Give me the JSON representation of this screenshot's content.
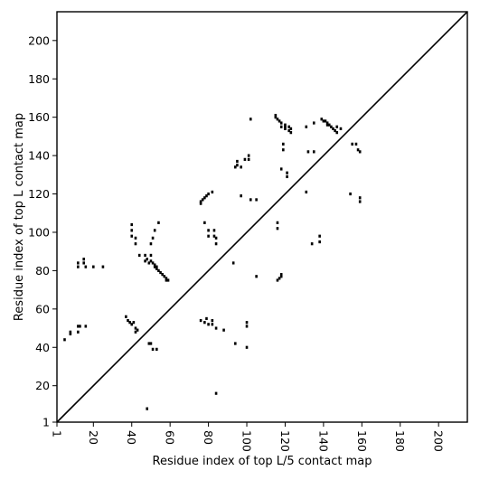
{
  "chart_data": {
    "type": "scatter",
    "xlabel": "Residue index of top L/5 contact map",
    "ylabel": "Residue index of top L contact map",
    "xlim": [
      1,
      215
    ],
    "ylim": [
      1,
      215
    ],
    "xticks": [
      1,
      20,
      40,
      60,
      80,
      100,
      120,
      140,
      160,
      180,
      200
    ],
    "yticks": [
      1,
      20,
      40,
      60,
      80,
      100,
      120,
      140,
      160,
      180,
      200
    ],
    "xtick_rotation": -90,
    "grid": false,
    "reference_line": {
      "from": [
        1,
        1
      ],
      "to": [
        215,
        215
      ]
    },
    "colors": {
      "marker": "#000000",
      "line": "#000000",
      "frame": "#000000"
    },
    "upper_triangle": [
      [
        12,
        84
      ],
      [
        12,
        82
      ],
      [
        15,
        86
      ],
      [
        15,
        84
      ],
      [
        16,
        82
      ],
      [
        20,
        82
      ],
      [
        25,
        82
      ],
      [
        40,
        104
      ],
      [
        40,
        101
      ],
      [
        40,
        98
      ],
      [
        42,
        97
      ],
      [
        42,
        94
      ],
      [
        44,
        88
      ],
      [
        47,
        88
      ],
      [
        47,
        85
      ],
      [
        48,
        86
      ],
      [
        49,
        84
      ],
      [
        50,
        88
      ],
      [
        50,
        85
      ],
      [
        50,
        94
      ],
      [
        51,
        97
      ],
      [
        51,
        84
      ],
      [
        52,
        83
      ],
      [
        52,
        82
      ],
      [
        52,
        101
      ],
      [
        53,
        82
      ],
      [
        53,
        81
      ],
      [
        54,
        80
      ],
      [
        54,
        105
      ],
      [
        55,
        79
      ],
      [
        56,
        78
      ],
      [
        57,
        77
      ],
      [
        58,
        76
      ],
      [
        58,
        75
      ],
      [
        59,
        75
      ],
      [
        76,
        115
      ],
      [
        76,
        116
      ],
      [
        77,
        117
      ],
      [
        78,
        118
      ],
      [
        78,
        105
      ],
      [
        79,
        119
      ],
      [
        80,
        120
      ],
      [
        80,
        101
      ],
      [
        80,
        98
      ],
      [
        82,
        121
      ],
      [
        83,
        101
      ],
      [
        83,
        98
      ],
      [
        84,
        97
      ],
      [
        84,
        94
      ],
      [
        94,
        134
      ],
      [
        95,
        135
      ],
      [
        95,
        137
      ],
      [
        97,
        119
      ],
      [
        97,
        134
      ],
      [
        99,
        138
      ],
      [
        101,
        138
      ],
      [
        101,
        140
      ],
      [
        102,
        159
      ],
      [
        115,
        161
      ],
      [
        115,
        160
      ],
      [
        116,
        159
      ],
      [
        117,
        158
      ],
      [
        118,
        157
      ],
      [
        118,
        155
      ],
      [
        118,
        133
      ],
      [
        119,
        146
      ],
      [
        119,
        143
      ],
      [
        120,
        156
      ],
      [
        120,
        155
      ],
      [
        120,
        154
      ],
      [
        121,
        131
      ],
      [
        121,
        129
      ],
      [
        122,
        155
      ],
      [
        122,
        153
      ],
      [
        123,
        154
      ],
      [
        123,
        152
      ],
      [
        131,
        155
      ],
      [
        132,
        142
      ],
      [
        135,
        157
      ],
      [
        135,
        142
      ],
      [
        139,
        159
      ],
      [
        140,
        158
      ],
      [
        141,
        158
      ],
      [
        142,
        157
      ],
      [
        142,
        156
      ],
      [
        143,
        156
      ],
      [
        144,
        155
      ],
      [
        145,
        154
      ],
      [
        146,
        153
      ],
      [
        147,
        155
      ],
      [
        147,
        152
      ],
      [
        149,
        154
      ],
      [
        155,
        146
      ],
      [
        157,
        146
      ],
      [
        158,
        143
      ],
      [
        159,
        142
      ]
    ],
    "lower_triangle": [
      [
        5,
        44
      ],
      [
        8,
        47
      ],
      [
        8,
        48
      ],
      [
        12,
        48
      ],
      [
        12,
        51
      ],
      [
        13,
        51
      ],
      [
        16,
        51
      ],
      [
        37,
        56
      ],
      [
        38,
        54
      ],
      [
        39,
        53
      ],
      [
        40,
        52
      ],
      [
        41,
        53
      ],
      [
        42,
        50
      ],
      [
        42,
        48
      ],
      [
        43,
        49
      ],
      [
        48,
        8
      ],
      [
        49,
        42
      ],
      [
        50,
        42
      ],
      [
        51,
        39
      ],
      [
        53,
        39
      ],
      [
        76,
        54
      ],
      [
        78,
        53
      ],
      [
        79,
        55
      ],
      [
        80,
        52
      ],
      [
        82,
        54
      ],
      [
        82,
        52
      ],
      [
        84,
        50
      ],
      [
        84,
        16
      ],
      [
        88,
        49
      ],
      [
        93,
        84
      ],
      [
        94,
        42
      ],
      [
        100,
        53
      ],
      [
        100,
        51
      ],
      [
        100,
        40
      ],
      [
        102,
        117
      ],
      [
        105,
        117
      ],
      [
        105,
        77
      ],
      [
        116,
        102
      ],
      [
        116,
        105
      ],
      [
        116,
        75
      ],
      [
        117,
        76
      ],
      [
        118,
        77
      ],
      [
        118,
        78
      ],
      [
        131,
        121
      ],
      [
        134,
        94
      ],
      [
        138,
        98
      ],
      [
        138,
        95
      ],
      [
        154,
        120
      ],
      [
        159,
        118
      ],
      [
        159,
        116
      ]
    ]
  }
}
